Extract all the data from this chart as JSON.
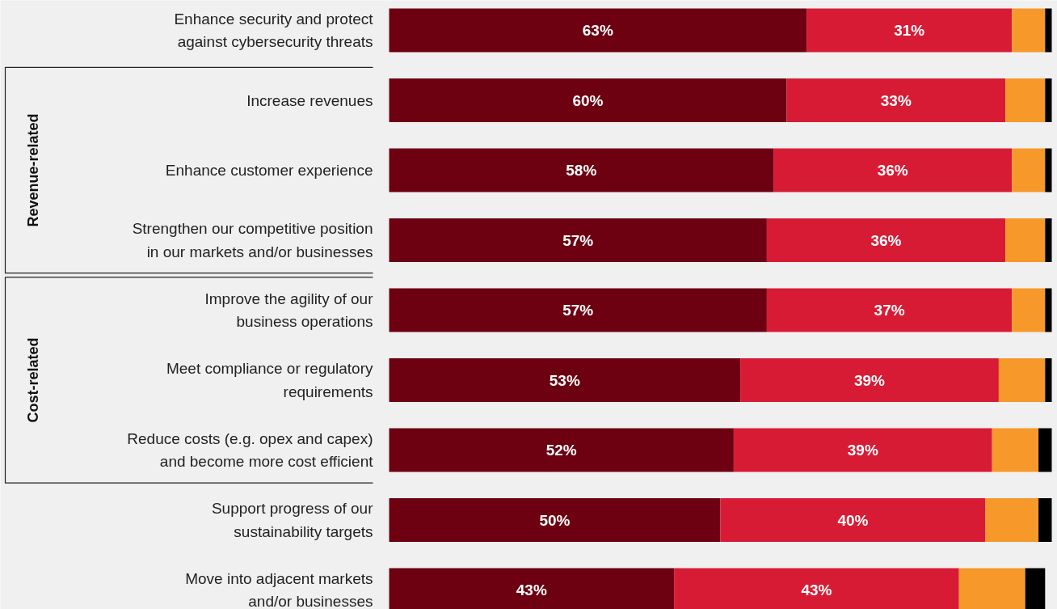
{
  "chart_data": {
    "type": "bar",
    "orientation": "horizontal",
    "stacked": true,
    "tick_labels": false,
    "categories": [
      "Enhance security and protect\nagainst cybersecurity threats",
      "Increase revenues",
      "Enhance customer experience",
      "Strengthen our competitive position\nin our markets and/or businesses",
      "Improve the agility of our\nbusiness operations",
      "Meet compliance or regulatory\nrequirements",
      "Reduce costs (e.g. opex and capex)\nand become more cost efficient",
      "Support progress of our\nsustainability targets",
      "Move into adjacent markets\nand/or businesses"
    ],
    "series": [
      {
        "color": "#6d0011",
        "values": [
          63,
          60,
          58,
          57,
          57,
          53,
          52,
          50,
          43
        ],
        "value_labels": [
          "63%",
          "60%",
          "58%",
          "57%",
          "57%",
          "53%",
          "52%",
          "50%",
          "43%"
        ]
      },
      {
        "color": "#d81b34",
        "values": [
          31,
          33,
          36,
          36,
          37,
          39,
          39,
          40,
          43
        ],
        "value_labels": [
          "31%",
          "33%",
          "36%",
          "36%",
          "37%",
          "39%",
          "39%",
          "40%",
          "43%"
        ]
      },
      {
        "color": "#f7982a",
        "values": [
          5,
          6,
          5,
          6,
          5,
          7,
          7,
          8,
          10
        ]
      },
      {
        "color": "#000000",
        "values": [
          1,
          1,
          1,
          1,
          1,
          1,
          2,
          2,
          3
        ]
      }
    ],
    "annotations": [
      "Revenue-related",
      "Cost-related"
    ]
  }
}
